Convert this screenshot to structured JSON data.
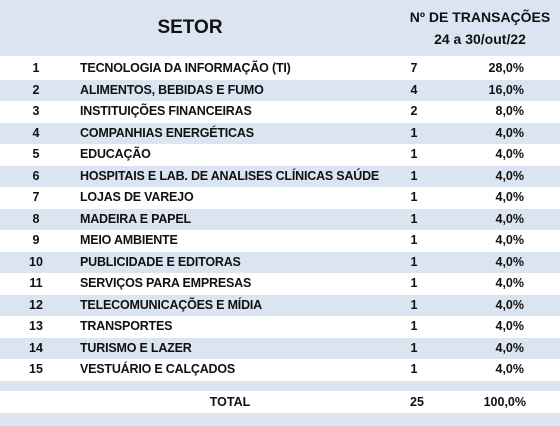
{
  "header": {
    "setor": "SETOR",
    "transacoes_line1": "Nº DE TRANSAÇÕES",
    "transacoes_line2": "24 a 30/out/22"
  },
  "rows": [
    {
      "num": "1",
      "name": "TECNOLOGIA DA INFORMAÇÃO (TI)",
      "count": "7",
      "pct": "28,0%"
    },
    {
      "num": "2",
      "name": "ALIMENTOS, BEBIDAS E FUMO",
      "count": "4",
      "pct": "16,0%"
    },
    {
      "num": "3",
      "name": "INSTITUIÇÕES FINANCEIRAS",
      "count": "2",
      "pct": "8,0%"
    },
    {
      "num": "4",
      "name": "COMPANHIAS ENERGÉTICAS",
      "count": "1",
      "pct": "4,0%"
    },
    {
      "num": "5",
      "name": "EDUCAÇÃO",
      "count": "1",
      "pct": "4,0%"
    },
    {
      "num": "6",
      "name": "HOSPITAIS E LAB. DE ANALISES CLÍNICAS SAÚDE",
      "count": "1",
      "pct": "4,0%"
    },
    {
      "num": "7",
      "name": "LOJAS DE VAREJO",
      "count": "1",
      "pct": "4,0%"
    },
    {
      "num": "8",
      "name": "MADEIRA E PAPEL",
      "count": "1",
      "pct": "4,0%"
    },
    {
      "num": "9",
      "name": "MEIO AMBIENTE",
      "count": "1",
      "pct": "4,0%"
    },
    {
      "num": "10",
      "name": "PUBLICIDADE E EDITORAS",
      "count": "1",
      "pct": "4,0%"
    },
    {
      "num": "11",
      "name": "SERVIÇOS PARA EMPRESAS",
      "count": "1",
      "pct": "4,0%"
    },
    {
      "num": "12",
      "name": "TELECOMUNICAÇÕES E MÍDIA",
      "count": "1",
      "pct": "4,0%"
    },
    {
      "num": "13",
      "name": "TRANSPORTES",
      "count": "1",
      "pct": "4,0%"
    },
    {
      "num": "14",
      "name": "TURISMO E LAZER",
      "count": "1",
      "pct": "4,0%"
    },
    {
      "num": "15",
      "name": "VESTUÁRIO E CALÇADOS",
      "count": "1",
      "pct": "4,0%"
    }
  ],
  "total": {
    "label": "TOTAL",
    "count": "25",
    "pct": "100,0%"
  },
  "colors": {
    "band": "#dbe4f1",
    "text": "#111111"
  }
}
